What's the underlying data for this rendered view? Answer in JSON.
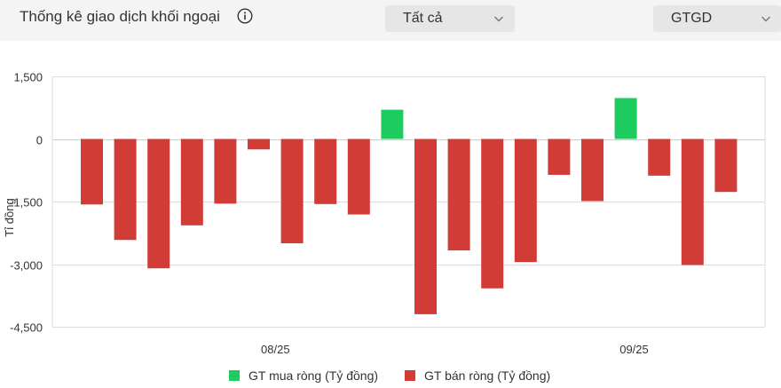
{
  "header": {
    "title": "Thống kê giao dịch khối ngoại",
    "info_icon": "info-circle-icon",
    "filter_select": {
      "value": "Tất cả",
      "icon": "chevron-down-icon"
    },
    "metric_select": {
      "value": "GTGD",
      "icon": "chevron-down-icon"
    }
  },
  "colors": {
    "buy": "#1ccc5f",
    "sell": "#d13c36",
    "grid": "#dddddd",
    "zero_line": "#cccccc"
  },
  "chart_data": {
    "type": "bar",
    "ylabel": "Tỉ đồng",
    "ylim": [
      -4500,
      1500
    ],
    "yticks": [
      1500,
      0,
      -1500,
      -3000,
      -4500
    ],
    "ytick_labels": [
      "1,500",
      "0",
      "-1,500",
      "-3,000",
      "-4,500"
    ],
    "xtick_labels": [
      {
        "label": "08/25",
        "position_index": 5.5
      },
      {
        "label": "09/25",
        "position_index": 16.25
      }
    ],
    "grid": true,
    "legend_position": "bottom",
    "series": [
      {
        "name": "GT mua ròng (Tỷ đồng)",
        "color": "#1ccc5f"
      },
      {
        "name": "GT bán ròng (Tỷ đồng)",
        "color": "#d13c36"
      }
    ],
    "values": [
      -1570,
      -2420,
      -3100,
      -2070,
      -1550,
      -250,
      -2500,
      -1560,
      -1810,
      700,
      -4200,
      -2670,
      -3580,
      -2950,
      -860,
      -1490,
      980,
      -880,
      -3020,
      -1270
    ]
  }
}
